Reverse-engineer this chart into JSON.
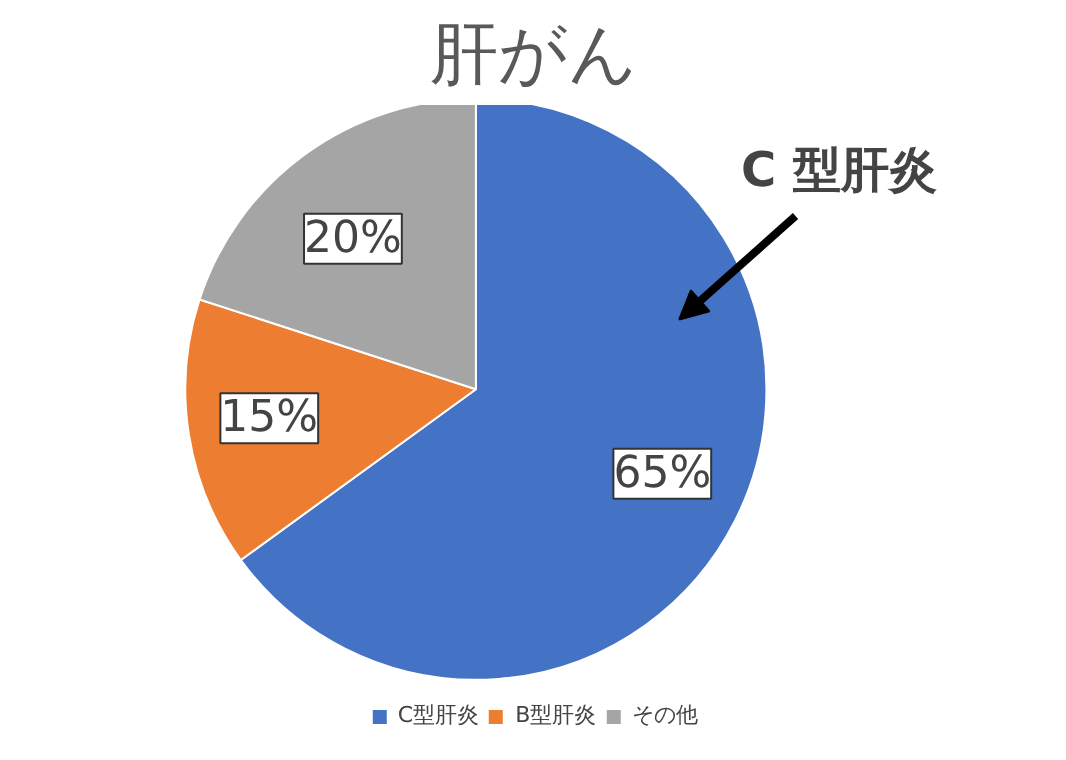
{
  "chart_data": {
    "type": "pie",
    "title": "肝がん",
    "categories": [
      "C型肝炎",
      "B型肝炎",
      "その他"
    ],
    "values": [
      65,
      15,
      20
    ],
    "colors": [
      "#4472c4",
      "#ed7d31",
      "#a5a5a5"
    ],
    "value_labels": [
      "65%",
      "15%",
      "20%"
    ],
    "annotations": [
      "C 型肝炎"
    ],
    "legend": "bottom"
  }
}
